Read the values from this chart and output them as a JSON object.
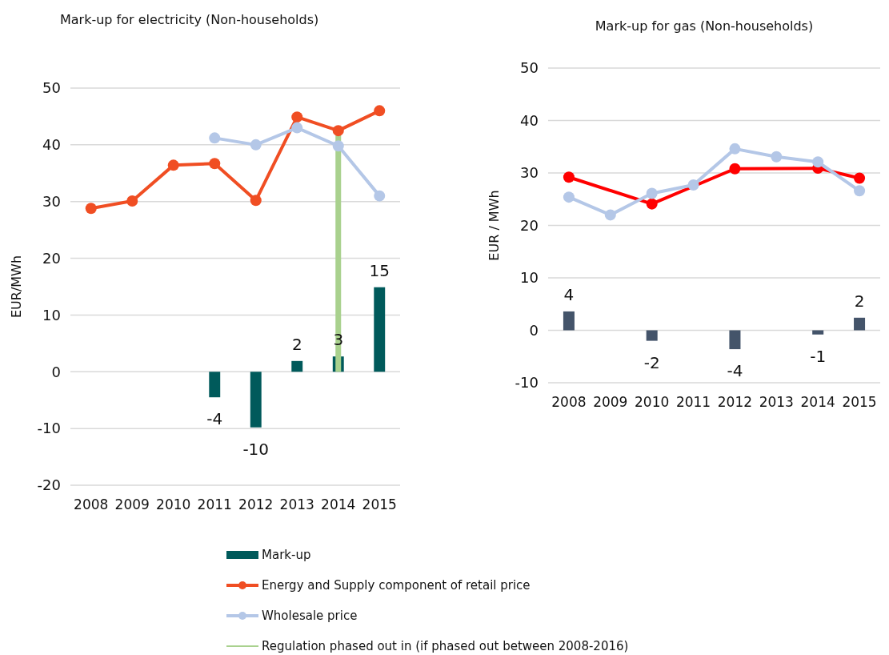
{
  "chart_data": [
    {
      "type": "bar",
      "title": "Mark-up for electricity (Non-households)",
      "ylabel": "EUR/MWh",
      "categories": [
        "2008",
        "2009",
        "2010",
        "2011",
        "2012",
        "2013",
        "2014",
        "2015"
      ],
      "series": [
        {
          "name": "Mark-up",
          "color": "#005a5b",
          "values": [
            null,
            null,
            null,
            -4.5,
            -9.8,
            1.9,
            2.7,
            14.9
          ],
          "value_labels": [
            null,
            null,
            null,
            "-4",
            "-10",
            "2",
            "3",
            "15"
          ]
        },
        {
          "name": "Energy and Supply component of retail price",
          "type": "line",
          "color": "#f04e23",
          "values": [
            28.8,
            30.1,
            36.4,
            36.7,
            30.2,
            44.9,
            42.5,
            46.0
          ]
        },
        {
          "name": "Wholesale price",
          "type": "line",
          "color": "#b4c7e7",
          "values": [
            null,
            null,
            null,
            41.2,
            40.0,
            43.0,
            39.8,
            31.0
          ]
        }
      ],
      "ref_lines": [
        {
          "axis": "x",
          "value": "2014",
          "label": "Regulation phased out in (if phased out between 2008-2016)",
          "color": "#a9d18e"
        }
      ],
      "ylim": [
        -20,
        50
      ],
      "yticks": [
        -20,
        -10,
        0,
        10,
        20,
        30,
        40,
        50
      ],
      "grid": "y",
      "marker": "circle",
      "legend": "bottom"
    },
    {
      "type": "bar",
      "title": "Mark-up for gas (Non-households)",
      "ylabel": "EUR / MWh",
      "categories": [
        "2008",
        "2009",
        "2010",
        "2011",
        "2012",
        "2013",
        "2014",
        "2015"
      ],
      "series": [
        {
          "color": "#44546a",
          "values": [
            3.6,
            null,
            -2.0,
            null,
            -3.6,
            null,
            -0.8,
            2.4
          ],
          "value_labels": [
            "4",
            null,
            "-2",
            null,
            "-4",
            null,
            "-1",
            "2"
          ]
        },
        {
          "type": "line",
          "color": "#ff0000",
          "values": [
            29.2,
            null,
            24.1,
            null,
            30.8,
            null,
            30.9,
            29.0
          ]
        },
        {
          "type": "line",
          "color": "#b4c7e7",
          "values": [
            25.4,
            22.0,
            26.1,
            27.7,
            34.6,
            33.1,
            32.1,
            26.6
          ]
        }
      ],
      "ylim": [
        -10,
        50
      ],
      "yticks": [
        -10,
        0,
        10,
        20,
        30,
        40,
        50
      ],
      "grid": "y",
      "marker": "circle"
    }
  ]
}
